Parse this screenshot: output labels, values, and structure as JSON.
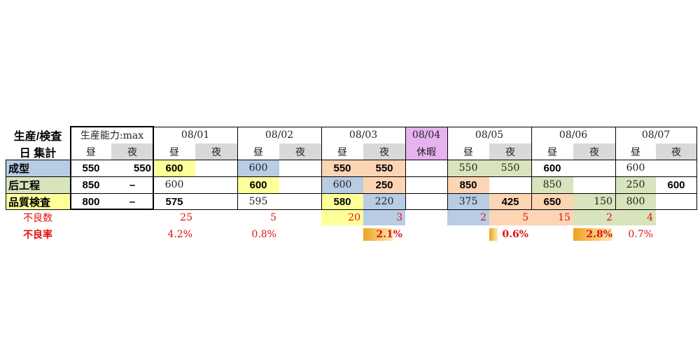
{
  "header": {
    "title1": "生産/検査",
    "title2": "日 集計",
    "capacity_label": "生産能力:max",
    "day": "昼",
    "night": "夜"
  },
  "dates": [
    "08/01",
    "08/02",
    "08/03",
    "08/04",
    "08/05",
    "08/06",
    "08/07"
  ],
  "holiday_label": "休暇",
  "rows": [
    {
      "label": "成型",
      "cap_day": "550",
      "cap_night": "550",
      "values": [
        "600",
        "",
        "600",
        "",
        "550",
        "550",
        "",
        "550",
        "550",
        "600",
        "",
        "600",
        ""
      ]
    },
    {
      "label": "后工程",
      "cap_day": "850",
      "cap_night": "–",
      "values": [
        "600",
        "",
        "600",
        "",
        "600",
        "250",
        "",
        "850",
        "",
        "850",
        "",
        "250",
        "600"
      ]
    },
    {
      "label": "品質検査",
      "cap_day": "800",
      "cap_night": "–",
      "values": [
        "575",
        "",
        "595",
        "",
        "580",
        "220",
        "",
        "375",
        "425",
        "650",
        "150",
        "800",
        ""
      ]
    }
  ],
  "defect_count": {
    "label": "不良数",
    "values": [
      "25",
      "5",
      "20",
      "3",
      "2",
      "5",
      "15",
      "2",
      "4"
    ]
  },
  "defect_rate": {
    "label": "不良率",
    "values": [
      "4.2%",
      "0.8%",
      "2.1%",
      "0.6%",
      "2.8%",
      "0.7%"
    ],
    "bar_fractions": [
      0.021,
      0.006,
      0.028
    ]
  },
  "colors": {
    "blue": "#b8cce4",
    "green": "#d8e4bc",
    "yellow": "#ffff99",
    "peach": "#fcd5b4",
    "gray": "#d9d9d9",
    "pink": "#e6b3f0",
    "red": "#e01010"
  }
}
